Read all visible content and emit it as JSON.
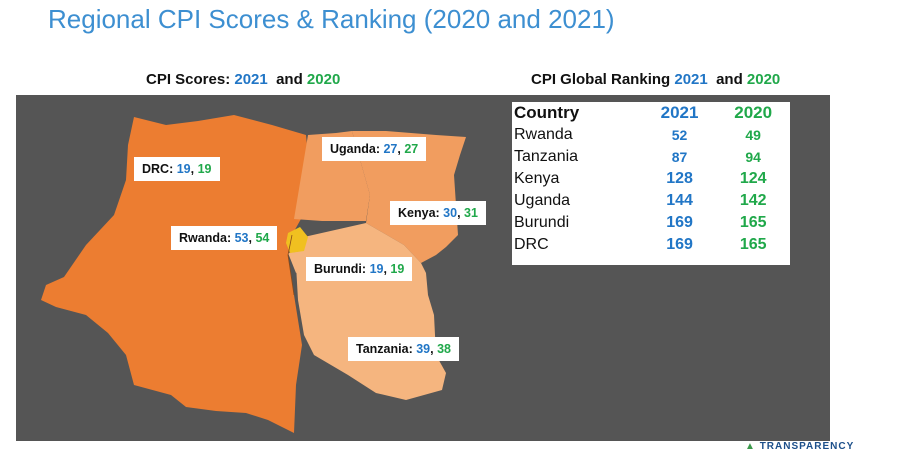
{
  "title": "Regional CPI Scores & Ranking (2020 and 2021)",
  "left_header": {
    "prefix": "CPI Scores: ",
    "y2021": "2021",
    "and": "  and ",
    "y2020": "2020"
  },
  "right_header": {
    "prefix": "CPI Global Ranking ",
    "y2021": "2021",
    "and": "  and ",
    "y2020": "2020"
  },
  "map_labels": [
    {
      "country": "DRC",
      "s2021": "19",
      "s2020": "19"
    },
    {
      "country": "Uganda",
      "s2021": "27",
      "s2020": "27"
    },
    {
      "country": "Kenya",
      "s2021": "30",
      "s2020": "31"
    },
    {
      "country": "Rwanda",
      "s2021": "53",
      "s2020": "54"
    },
    {
      "country": "Burundi",
      "s2021": "19",
      "s2020": "19"
    },
    {
      "country": "Tanzania",
      "s2021": "39",
      "s2020": "38"
    }
  ],
  "ranking": {
    "headers": {
      "country": "Country",
      "y2021": "2021",
      "y2020": "2020"
    },
    "rows": [
      {
        "country": "Rwanda",
        "r2021": "52",
        "r2020": "49"
      },
      {
        "country": "Tanzania",
        "r2021": "87",
        "r2020": "94"
      },
      {
        "country": "Kenya",
        "r2021": "128",
        "r2020": "124"
      },
      {
        "country": "Uganda",
        "r2021": "144",
        "r2020": "142"
      },
      {
        "country": "Burundi",
        "r2021": "169",
        "r2020": "165"
      },
      {
        "country": "DRC",
        "r2021": "169",
        "r2020": "165"
      }
    ]
  },
  "logo_text": "TRANSPARENCY",
  "colors": {
    "drc": "#ec7d31",
    "uganda": "#f19d5f",
    "kenya": "#f19d5f",
    "tanzania": "#f5b57f",
    "rwanda": "#f0c020",
    "burundi": "#f5b57f",
    "blue": "#2176c6",
    "green": "#20a84a"
  }
}
